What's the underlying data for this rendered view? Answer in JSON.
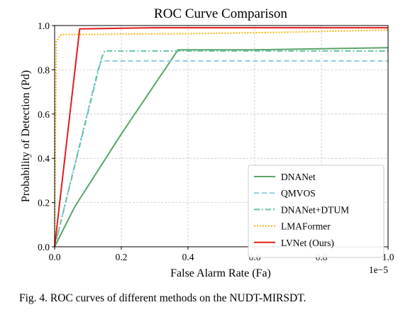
{
  "chart_data": {
    "type": "line",
    "title": "ROC Curve Comparison",
    "xlabel": "False Alarm Rate (Fa)",
    "ylabel": "Probability of Detection (Pd)",
    "x_scale_label": "1e−5",
    "xlim": [
      0,
      1.0
    ],
    "ylim": [
      0,
      1.0
    ],
    "x_ticks": [
      "0.0",
      "0.2",
      "0.4",
      "0.6",
      "0.8",
      "1.0"
    ],
    "y_ticks": [
      "0.0",
      "0.2",
      "0.4",
      "0.6",
      "0.8",
      "1.0"
    ],
    "grid": true,
    "legend_position": "lower-right",
    "series": [
      {
        "name": "DNANet",
        "color": "#5aa469",
        "dash": "solid",
        "points": [
          [
            0,
            0
          ],
          [
            0.06,
            0.18
          ],
          [
            0.2,
            0.51
          ],
          [
            0.37,
            0.89
          ],
          [
            0.6,
            0.89
          ],
          [
            1.0,
            0.9
          ]
        ]
      },
      {
        "name": "QMVOS",
        "color": "#8ecae6",
        "dash": "dashed",
        "points": [
          [
            0,
            0
          ],
          [
            0.13,
            0.8
          ],
          [
            0.14,
            0.84
          ],
          [
            0.5,
            0.84
          ],
          [
            1.0,
            0.84
          ]
        ]
      },
      {
        "name": "DNANet+DTUM",
        "color": "#66c2a5",
        "dash": "dashdot",
        "points": [
          [
            0,
            0
          ],
          [
            0.14,
            0.85
          ],
          [
            0.15,
            0.885
          ],
          [
            0.5,
            0.885
          ],
          [
            1.0,
            0.885
          ]
        ]
      },
      {
        "name": "LMAFormer",
        "color": "#f6b40e",
        "dash": "dotted",
        "points": [
          [
            0,
            0
          ],
          [
            0.005,
            0.93
          ],
          [
            0.02,
            0.96
          ],
          [
            0.1,
            0.96
          ],
          [
            0.4,
            0.963
          ],
          [
            0.7,
            0.97
          ],
          [
            1.0,
            0.98
          ]
        ]
      },
      {
        "name": "LVNet (Ours)",
        "color": "#e41a1c",
        "dash": "solid",
        "points": [
          [
            0,
            0
          ],
          [
            0.075,
            0.985
          ],
          [
            0.3,
            0.99
          ],
          [
            1.0,
            0.99
          ]
        ]
      }
    ]
  },
  "caption": "Fig. 4.  ROC curves of different methods on the NUDT-MIRSDT."
}
